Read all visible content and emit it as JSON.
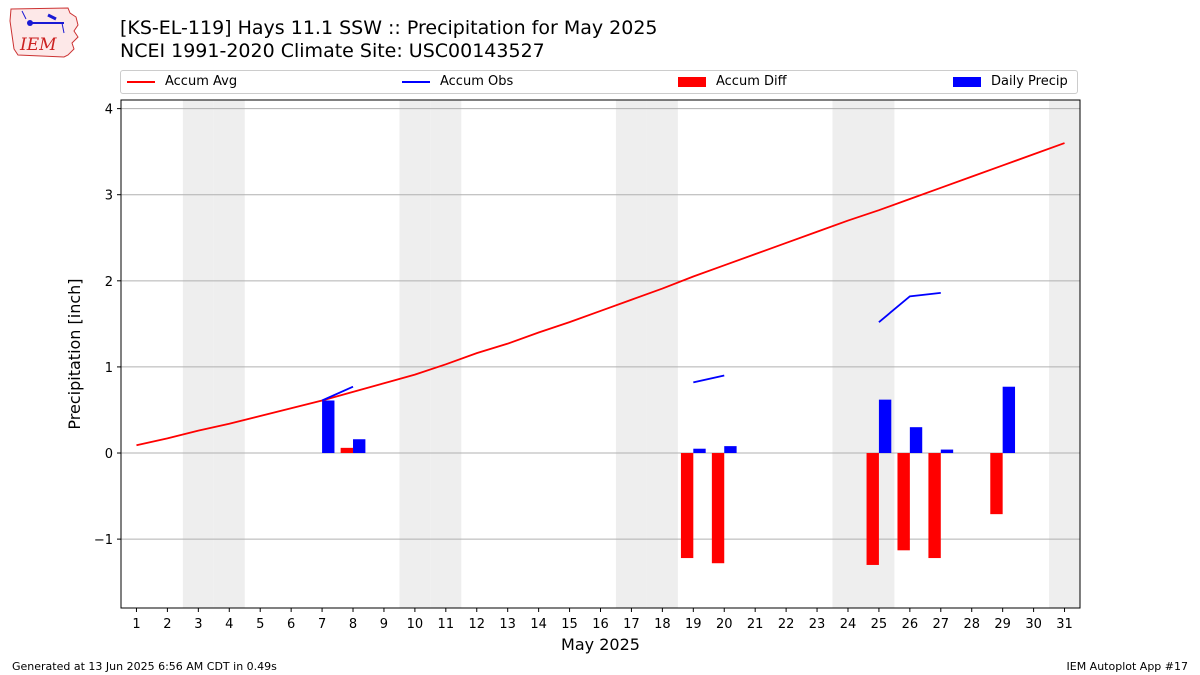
{
  "header": {
    "title": "[KS-EL-119] Hays 11.1 SSW :: Precipitation for May 2025",
    "subtitle": "NCEI 1991-2020 Climate Site: USC00143527",
    "logo_text": "IEM"
  },
  "footer": {
    "left": "Generated at 13 Jun 2025 6:56 AM CDT in 0.49s",
    "right": "IEM Autoplot App #17"
  },
  "colors": {
    "accum_avg": "#ff0000",
    "accum_obs": "#0000ff",
    "accum_diff": "#ff0000",
    "daily_precip": "#0000ff",
    "weekend_shade": "#eeeeee",
    "grid": "#b0b0b0"
  },
  "chart_data": {
    "type": "bar",
    "xlabel": "May 2025",
    "ylabel": "Precipitation [inch]",
    "xlim": [
      0.5,
      31.5
    ],
    "ylim": [
      -1.8,
      4.1
    ],
    "grid": "y",
    "x_ticks": [
      1,
      2,
      3,
      4,
      5,
      6,
      7,
      8,
      9,
      10,
      11,
      12,
      13,
      14,
      15,
      16,
      17,
      18,
      19,
      20,
      21,
      22,
      23,
      24,
      25,
      26,
      27,
      28,
      29,
      30,
      31
    ],
    "y_ticks": [
      -1,
      0,
      1,
      2,
      3,
      4
    ],
    "y_tick_labels": [
      "−1",
      "0",
      "1",
      "2",
      "3",
      "4"
    ],
    "weekend_shading_days": [
      3,
      4,
      10,
      11,
      17,
      18,
      24,
      25,
      31
    ],
    "legend": {
      "placement": "top",
      "entries": [
        "Accum Avg",
        "Accum Obs",
        "Accum Diff",
        "Daily Precip"
      ]
    },
    "series": [
      {
        "name": "Accum Avg",
        "kind": "line",
        "x": [
          1,
          2,
          3,
          4,
          5,
          6,
          7,
          8,
          9,
          10,
          11,
          12,
          13,
          14,
          15,
          16,
          17,
          18,
          19,
          20,
          21,
          22,
          23,
          24,
          25,
          26,
          27,
          28,
          29,
          30,
          31
        ],
        "values": [
          0.09,
          0.17,
          0.26,
          0.34,
          0.43,
          0.52,
          0.61,
          0.71,
          0.81,
          0.91,
          1.03,
          1.16,
          1.27,
          1.4,
          1.52,
          1.65,
          1.78,
          1.91,
          2.05,
          2.18,
          2.31,
          2.44,
          2.57,
          2.7,
          2.82,
          2.95,
          3.08,
          3.21,
          3.34,
          3.47,
          3.6
        ]
      },
      {
        "name": "Accum Obs",
        "kind": "line",
        "segments": [
          {
            "x": [
              7,
              8
            ],
            "values": [
              0.61,
              0.77
            ]
          },
          {
            "x": [
              19,
              20
            ],
            "values": [
              0.82,
              0.9
            ]
          },
          {
            "x": [
              25,
              26,
              27
            ],
            "values": [
              1.52,
              1.82,
              1.86
            ]
          }
        ]
      },
      {
        "name": "Accum Diff",
        "kind": "bar",
        "x": [
          8,
          19,
          20,
          25,
          26,
          27,
          29
        ],
        "values": [
          0.06,
          -1.22,
          -1.28,
          -1.3,
          -1.13,
          -1.22,
          -0.71
        ]
      },
      {
        "name": "Daily Precip",
        "kind": "bar",
        "x": [
          7,
          8,
          19,
          20,
          25,
          26,
          27,
          29
        ],
        "values": [
          0.61,
          0.16,
          0.05,
          0.08,
          0.62,
          0.3,
          0.04,
          0.77
        ]
      }
    ]
  }
}
